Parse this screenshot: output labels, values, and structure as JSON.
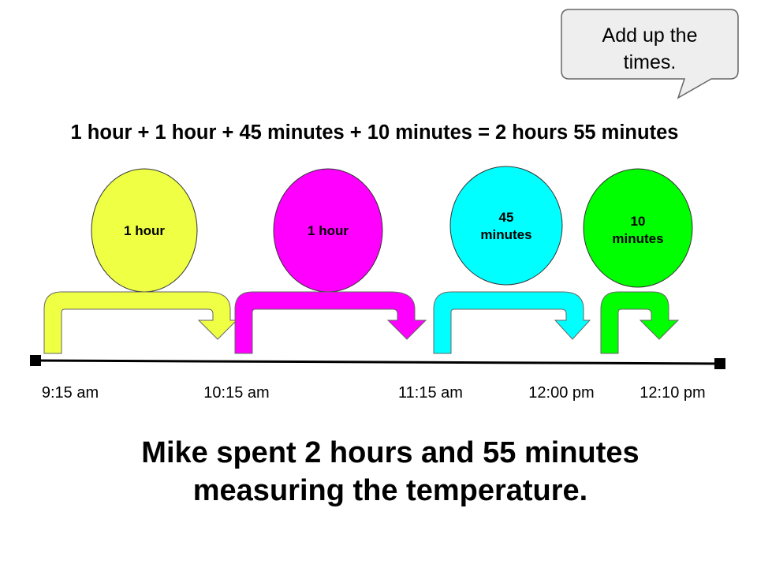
{
  "callout": {
    "line1": "Add up the",
    "line2": "times."
  },
  "equation": "1 hour + 1 hour + 45 minutes + 10 minutes = 2 hours 55 minutes",
  "intervals": [
    {
      "label_line1": "1 hour",
      "label_line2": "",
      "color": "#eeff44"
    },
    {
      "label_line1": "1 hour",
      "label_line2": "",
      "color": "#ff00ff"
    },
    {
      "label_line1": "45",
      "label_line2": "minutes",
      "color": "#00ffff"
    },
    {
      "label_line1": "10",
      "label_line2": "minutes",
      "color": "#00ff00"
    }
  ],
  "times": [
    "9:15 am",
    "10:15 am",
    "11:15 am",
    "12:00 pm",
    "12:10 pm"
  ],
  "conclusion": {
    "line1": "Mike spent 2 hours and 55 minutes",
    "line2": "measuring the temperature."
  }
}
